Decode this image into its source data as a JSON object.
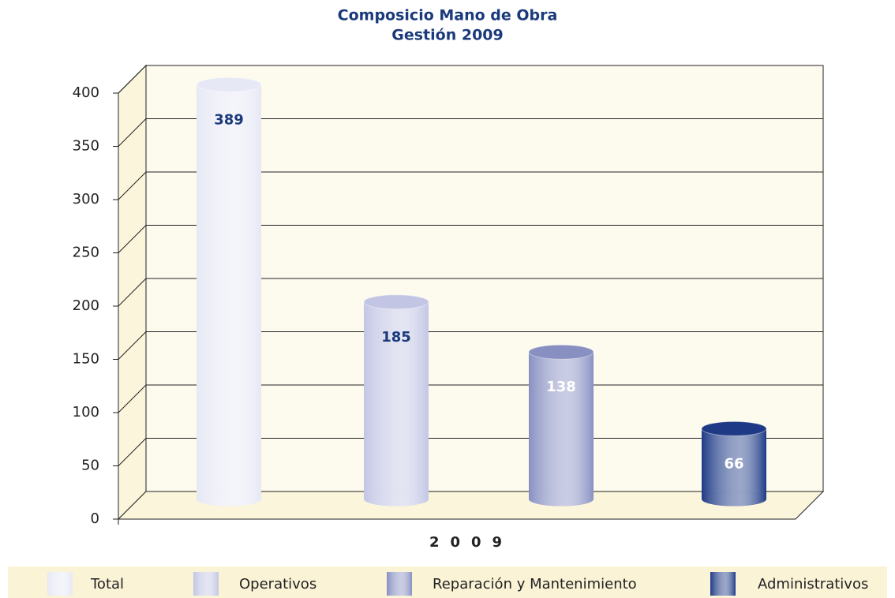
{
  "chart_data": {
    "type": "bar",
    "title": "Composicio Mano de Obra",
    "subtitle": "Gestión 2009",
    "categories": [
      "2009"
    ],
    "series": [
      {
        "name": "Total",
        "color": "#e6e8f5",
        "values": [
          389
        ]
      },
      {
        "name": "Operativos",
        "color": "#c2c6e4",
        "values": [
          185
        ]
      },
      {
        "name": "Reparación y Mantenimiento",
        "color": "#8890c2",
        "values": [
          138
        ]
      },
      {
        "name": "Administrativos",
        "color": "#1e3a86",
        "values": [
          66
        ]
      }
    ],
    "ylim": [
      0,
      400
    ],
    "yticks": [
      0,
      50,
      100,
      150,
      200,
      250,
      300,
      350,
      400
    ],
    "grid": true
  }
}
